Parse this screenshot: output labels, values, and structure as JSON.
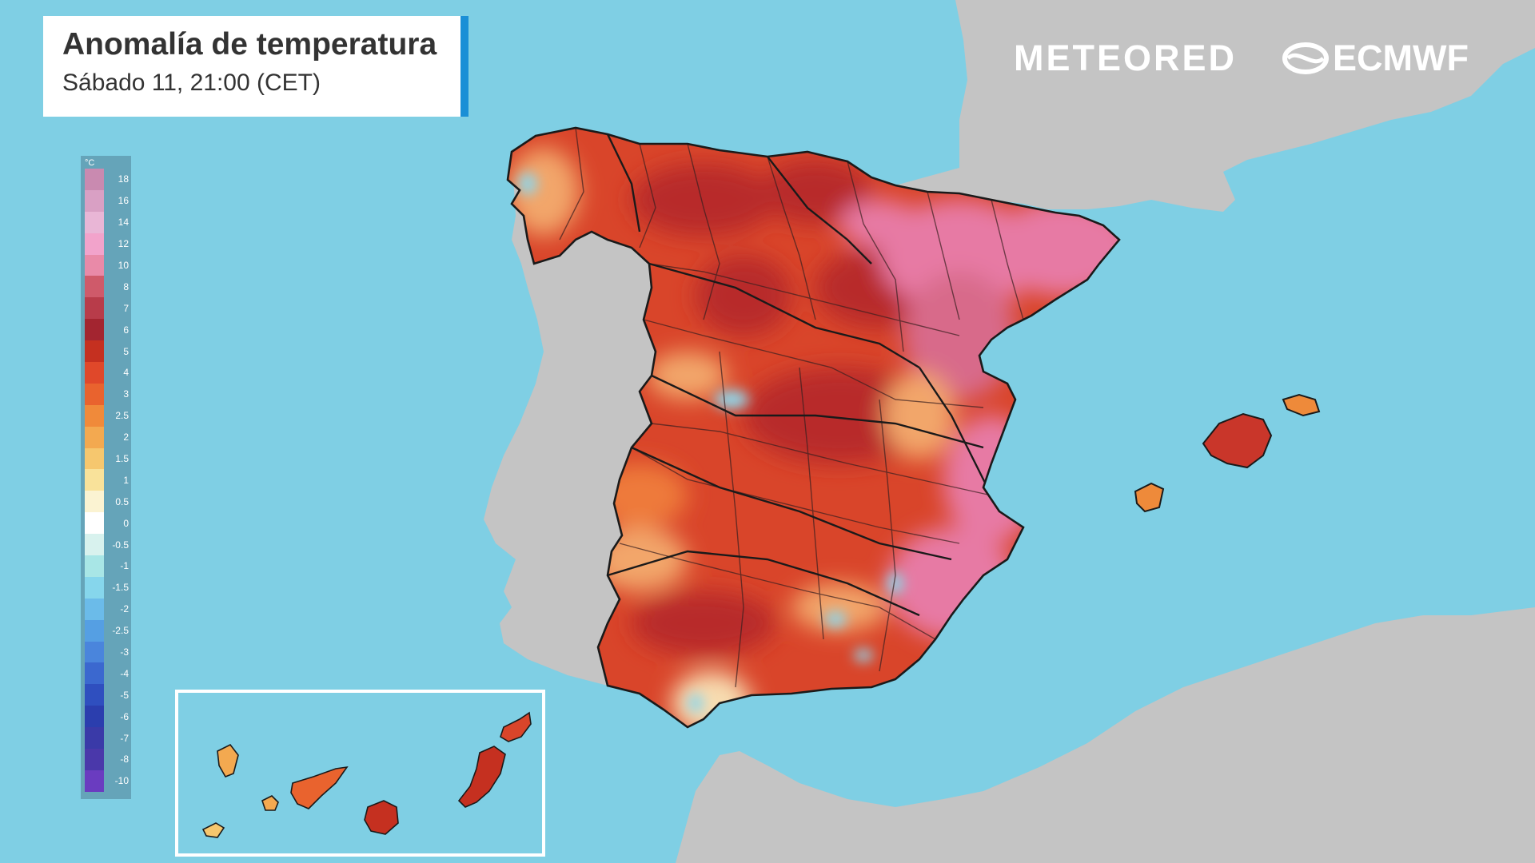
{
  "title": "Anomalía de temperatura",
  "subtitle": "Sábado 11, 21:00 (CET)",
  "brands": {
    "meteored": "METEORED",
    "ecmwf": "ECMWF"
  },
  "legend": {
    "unit": "°C",
    "ticks": [
      "18",
      "16",
      "14",
      "12",
      "10",
      "8",
      "7",
      "6",
      "5",
      "4",
      "3",
      "2.5",
      "2",
      "1.5",
      "1",
      "0.5",
      "0",
      "-0.5",
      "-1",
      "-1.5",
      "-2",
      "-2.5",
      "-3",
      "-4",
      "-5",
      "-6",
      "-7",
      "-8",
      "-10"
    ],
    "colors": [
      "#c98ab0",
      "#d9a0c4",
      "#e9b6d6",
      "#f2a3cb",
      "#e98aa8",
      "#cf5a6a",
      "#b83c4a",
      "#a32530",
      "#c53020",
      "#e0482a",
      "#e9632e",
      "#f08a3a",
      "#f3a950",
      "#f6c76e",
      "#f9e29a",
      "#fbf3d2",
      "#ffffff",
      "#d8f2ee",
      "#a8e6e6",
      "#86d6ec",
      "#6bbbe9",
      "#559fe3",
      "#4a85dc",
      "#3b68cf",
      "#2f4fbf",
      "#2b3eae",
      "#3a3aa8",
      "#4a38aa",
      "#6a3cc0"
    ]
  },
  "map_colors": {
    "sea": "#7fcfe4",
    "land": "#c4c4c4",
    "anomaly_base": "#d9452a",
    "anomaly_dark": "#b82c2c",
    "anomaly_pink": "#e77aa4",
    "anomaly_light": "#f2a66a",
    "anomaly_cool": "#8fd6ea",
    "borders": "#2a2a2a"
  }
}
